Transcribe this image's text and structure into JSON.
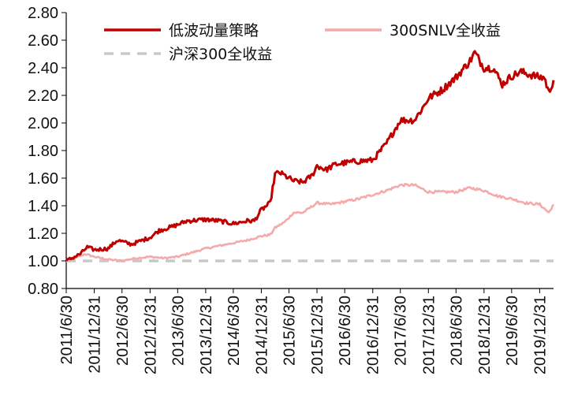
{
  "chart_data": {
    "type": "line",
    "title": "",
    "xlabel": "",
    "ylabel": "",
    "ylim": [
      0.8,
      2.8
    ],
    "yticks": [
      "0.80",
      "1.00",
      "1.20",
      "1.40",
      "1.60",
      "1.80",
      "2.00",
      "2.20",
      "2.40",
      "2.60",
      "2.80"
    ],
    "xlim": [
      "2011/6/30",
      "2020/3/31"
    ],
    "xticks": [
      "2011/6/30",
      "2011/12/31",
      "2012/6/30",
      "2012/12/31",
      "2013/6/30",
      "2013/12/31",
      "2014/6/30",
      "2014/12/31",
      "2015/6/30",
      "2015/12/31",
      "2016/6/30",
      "2016/12/31",
      "2017/6/30",
      "2017/12/31",
      "2018/6/30",
      "2018/12/31",
      "2019/6/30",
      "2019/12/31"
    ],
    "grid": false,
    "legend_position": "top",
    "series": [
      {
        "name": "低波动量策略",
        "color": "#c00000",
        "points": [
          [
            "2011/6/30",
            1.0
          ],
          [
            "2011/9/30",
            1.05
          ],
          [
            "2011/11/15",
            1.1
          ],
          [
            "2011/12/31",
            1.08
          ],
          [
            "2012/3/31",
            1.09
          ],
          [
            "2012/5/31",
            1.15
          ],
          [
            "2012/8/31",
            1.12
          ],
          [
            "2012/12/31",
            1.17
          ],
          [
            "2013/2/28",
            1.22
          ],
          [
            "2013/5/31",
            1.25
          ],
          [
            "2013/8/31",
            1.29
          ],
          [
            "2013/12/31",
            1.3
          ],
          [
            "2014/3/31",
            1.29
          ],
          [
            "2014/6/30",
            1.27
          ],
          [
            "2014/9/30",
            1.29
          ],
          [
            "2014/11/15",
            1.29
          ],
          [
            "2014/12/31",
            1.37
          ],
          [
            "2015/2/28",
            1.42
          ],
          [
            "2015/3/31",
            1.63
          ],
          [
            "2015/4/30",
            1.64
          ],
          [
            "2015/7/31",
            1.58
          ],
          [
            "2015/9/30",
            1.57
          ],
          [
            "2015/11/30",
            1.62
          ],
          [
            "2015/12/31",
            1.69
          ],
          [
            "2016/2/28",
            1.66
          ],
          [
            "2016/4/30",
            1.7
          ],
          [
            "2016/8/31",
            1.72
          ],
          [
            "2016/12/31",
            1.73
          ],
          [
            "2017/3/31",
            1.85
          ],
          [
            "2017/6/30",
            2.02
          ],
          [
            "2017/9/30",
            2.02
          ],
          [
            "2017/11/30",
            2.12
          ],
          [
            "2017/12/31",
            2.18
          ],
          [
            "2018/3/31",
            2.24
          ],
          [
            "2018/6/30",
            2.33
          ],
          [
            "2018/9/30",
            2.45
          ],
          [
            "2018/10/31",
            2.51
          ],
          [
            "2018/12/31",
            2.4
          ],
          [
            "2019/2/28",
            2.4
          ],
          [
            "2019/4/30",
            2.28
          ],
          [
            "2019/6/30",
            2.34
          ],
          [
            "2019/8/31",
            2.37
          ],
          [
            "2019/10/31",
            2.35
          ],
          [
            "2019/12/31",
            2.33
          ],
          [
            "2020/1/31",
            2.33
          ],
          [
            "2020/2/29",
            2.22
          ],
          [
            "2020/3/31",
            2.31
          ]
        ]
      },
      {
        "name": "300SNLV全收益",
        "color": "#f4aaaa",
        "points": [
          [
            "2011/6/30",
            1.0
          ],
          [
            "2011/8/31",
            1.02
          ],
          [
            "2011/10/31",
            1.05
          ],
          [
            "2011/12/31",
            1.03
          ],
          [
            "2012/3/31",
            1.01
          ],
          [
            "2012/6/30",
            1.0
          ],
          [
            "2012/9/30",
            1.02
          ],
          [
            "2012/12/31",
            1.03
          ],
          [
            "2013/3/31",
            1.02
          ],
          [
            "2013/6/30",
            1.03
          ],
          [
            "2013/9/30",
            1.06
          ],
          [
            "2013/12/31",
            1.09
          ],
          [
            "2014/3/31",
            1.11
          ],
          [
            "2014/6/30",
            1.13
          ],
          [
            "2014/9/30",
            1.15
          ],
          [
            "2014/12/31",
            1.18
          ],
          [
            "2015/2/28",
            1.19
          ],
          [
            "2015/3/31",
            1.24
          ],
          [
            "2015/5/31",
            1.28
          ],
          [
            "2015/7/31",
            1.35
          ],
          [
            "2015/9/30",
            1.35
          ],
          [
            "2015/12/31",
            1.42
          ],
          [
            "2016/3/31",
            1.41
          ],
          [
            "2016/6/30",
            1.43
          ],
          [
            "2016/9/30",
            1.45
          ],
          [
            "2016/12/31",
            1.48
          ],
          [
            "2017/3/31",
            1.51
          ],
          [
            "2017/6/30",
            1.55
          ],
          [
            "2017/9/30",
            1.55
          ],
          [
            "2017/12/31",
            1.5
          ],
          [
            "2018/3/31",
            1.5
          ],
          [
            "2018/6/30",
            1.5
          ],
          [
            "2018/9/30",
            1.53
          ],
          [
            "2018/12/31",
            1.51
          ],
          [
            "2019/3/31",
            1.47
          ],
          [
            "2019/6/30",
            1.45
          ],
          [
            "2019/9/30",
            1.42
          ],
          [
            "2019/12/31",
            1.41
          ],
          [
            "2020/2/29",
            1.35
          ],
          [
            "2020/3/31",
            1.41
          ]
        ]
      },
      {
        "name": "沪深300全收益",
        "color": "#c8c8c8",
        "dashed": true,
        "points": [
          [
            "2011/6/30",
            1.0
          ],
          [
            "2020/3/31",
            1.0
          ]
        ]
      }
    ]
  }
}
